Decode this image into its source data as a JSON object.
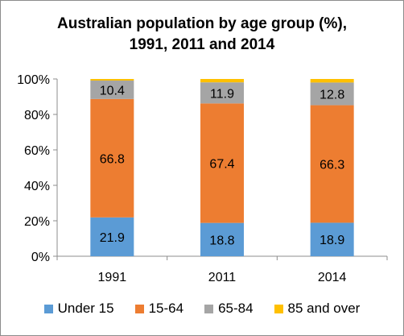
{
  "chart_data": {
    "type": "bar",
    "stacked": true,
    "title_lines": [
      "Australian population by age group (%),",
      "1991, 2011 and 2014"
    ],
    "xlabel": "",
    "ylabel": "",
    "ylim": [
      0,
      100
    ],
    "y_ticks": [
      "0%",
      "20%",
      "40%",
      "60%",
      "80%",
      "100%"
    ],
    "categories": [
      "1991",
      "2011",
      "2014"
    ],
    "series": [
      {
        "name": "Under 15",
        "color": "#5B9BD5",
        "values": [
          21.9,
          18.8,
          18.9
        ],
        "labels": [
          "21.9",
          "18.8",
          "18.9"
        ]
      },
      {
        "name": "15-64",
        "color": "#ED7D31",
        "values": [
          66.8,
          67.4,
          66.3
        ],
        "labels": [
          "66.8",
          "67.4",
          "66.3"
        ]
      },
      {
        "name": "65-84",
        "color": "#A5A5A5",
        "values": [
          10.4,
          11.9,
          12.8
        ],
        "labels": [
          "10.4",
          "11.9",
          "12.8"
        ]
      },
      {
        "name": "85 and over",
        "color": "#FFC000",
        "values": [
          0.9,
          1.9,
          2.0
        ],
        "labels": []
      }
    ],
    "grid": false,
    "legend_position": "bottom"
  }
}
